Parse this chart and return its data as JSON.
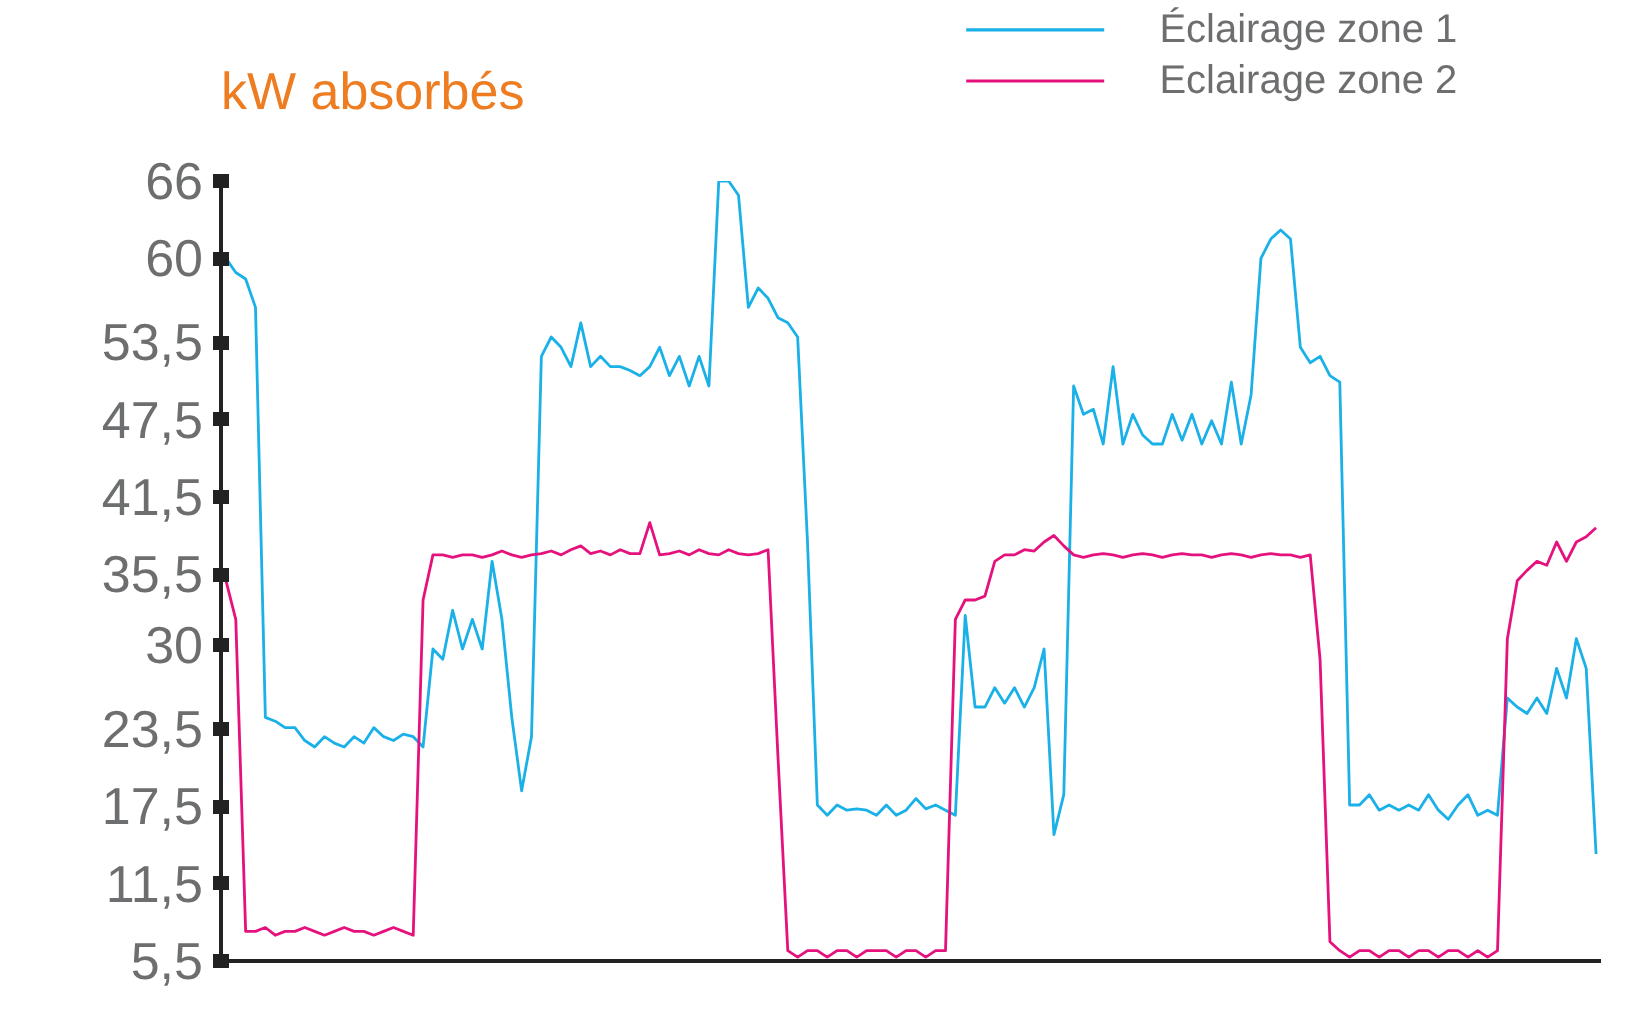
{
  "chart_data": {
    "type": "line",
    "title": "kW absorbés",
    "categories": [
      null,
      null,
      null,
      null,
      null,
      null,
      null,
      null,
      null,
      null,
      null,
      null,
      null,
      null,
      null,
      null,
      null,
      null,
      null,
      null,
      null,
      null,
      null,
      null,
      null,
      null,
      null,
      null,
      null,
      null,
      null,
      null,
      null,
      null,
      null,
      null,
      null,
      null,
      null,
      null,
      null,
      null,
      null,
      null,
      null,
      null,
      null,
      null,
      null,
      null,
      null,
      null,
      null,
      null,
      null,
      null,
      null,
      null,
      null,
      null,
      null,
      null,
      null,
      null,
      null,
      null,
      null,
      null,
      null,
      null,
      null,
      null,
      null,
      null,
      null,
      null,
      null,
      null,
      null,
      null,
      null,
      null,
      null,
      null,
      null,
      null,
      null,
      null,
      null,
      null,
      null,
      null,
      null,
      null,
      null,
      null,
      null,
      null,
      null,
      null,
      null,
      null,
      null,
      null,
      null,
      null,
      null,
      null,
      null,
      null,
      null,
      null,
      null,
      null,
      null,
      null,
      null,
      null,
      null,
      null,
      null,
      null,
      null,
      null,
      null,
      null,
      null,
      null,
      null,
      null,
      null,
      null,
      null,
      null,
      null,
      null,
      null,
      null,
      null,
      null
    ],
    "series": [
      {
        "name": "Éclairage zone 1",
        "color": "#1ab0e8",
        "values": [
          60.0,
          58.9,
          58.4,
          56.2,
          24.4,
          24.1,
          23.6,
          23.6,
          22.6,
          22.1,
          22.9,
          22.4,
          22.1,
          22.9,
          22.4,
          23.6,
          22.9,
          22.6,
          23.1,
          22.9,
          22.1,
          29.7,
          28.9,
          32.7,
          29.7,
          32.0,
          29.7,
          36.5,
          32.0,
          24.4,
          18.7,
          22.9,
          52.4,
          53.9,
          53.1,
          51.6,
          55.0,
          51.6,
          52.4,
          51.6,
          51.6,
          51.3,
          50.9,
          51.6,
          53.1,
          50.9,
          52.4,
          50.1,
          52.4,
          50.1,
          66.0,
          66.0,
          64.9,
          56.2,
          57.7,
          56.9,
          55.4,
          55.0,
          53.9,
          38.0,
          17.6,
          16.8,
          17.6,
          17.2,
          17.3,
          17.2,
          16.8,
          17.6,
          16.8,
          17.2,
          18.1,
          17.3,
          17.6,
          17.2,
          16.8,
          32.3,
          25.2,
          25.2,
          26.7,
          25.5,
          26.7,
          25.2,
          26.7,
          29.7,
          15.3,
          18.4,
          50.1,
          47.9,
          48.3,
          45.6,
          51.6,
          45.6,
          47.9,
          46.3,
          45.6,
          45.6,
          47.9,
          45.9,
          47.9,
          45.6,
          47.4,
          45.6,
          50.4,
          45.6,
          49.4,
          60.0,
          61.5,
          62.2,
          61.5,
          53.1,
          51.9,
          52.4,
          50.9,
          50.4,
          17.6,
          17.6,
          18.4,
          17.2,
          17.6,
          17.2,
          17.6,
          17.2,
          18.4,
          17.2,
          16.5,
          17.6,
          18.4,
          16.8,
          17.2,
          16.8,
          25.9,
          25.2,
          24.7,
          25.9,
          24.7,
          28.2,
          25.9,
          30.5,
          28.2,
          13.8
        ]
      },
      {
        "name": "Eclairage zone 2",
        "color": "#e5127d",
        "values": [
          35.0,
          32.0,
          7.8,
          7.8,
          8.1,
          7.5,
          7.8,
          7.8,
          8.1,
          7.8,
          7.5,
          7.8,
          8.1,
          7.8,
          7.8,
          7.5,
          7.8,
          8.1,
          7.8,
          7.5,
          33.5,
          37.0,
          37.0,
          36.8,
          37.0,
          37.0,
          36.8,
          37.0,
          37.3,
          37.0,
          36.8,
          37.0,
          37.1,
          37.3,
          37.0,
          37.4,
          37.7,
          37.1,
          37.3,
          37.0,
          37.4,
          37.1,
          37.1,
          39.5,
          37.0,
          37.1,
          37.3,
          37.0,
          37.4,
          37.1,
          37.0,
          37.4,
          37.1,
          37.0,
          37.1,
          37.4,
          21.4,
          6.3,
          5.8,
          6.3,
          6.3,
          5.8,
          6.3,
          6.3,
          5.8,
          6.3,
          6.3,
          6.3,
          5.8,
          6.3,
          6.3,
          5.8,
          6.3,
          6.3,
          32.0,
          33.5,
          33.5,
          33.8,
          36.5,
          37.0,
          37.0,
          37.4,
          37.3,
          38.0,
          38.5,
          37.7,
          37.0,
          36.8,
          37.0,
          37.1,
          37.0,
          36.8,
          37.0,
          37.1,
          37.0,
          36.8,
          37.0,
          37.1,
          37.0,
          37.0,
          36.8,
          37.0,
          37.1,
          37.0,
          36.8,
          37.0,
          37.1,
          37.0,
          37.0,
          36.8,
          37.0,
          28.9,
          7.0,
          6.3,
          5.8,
          6.3,
          6.3,
          5.8,
          6.3,
          6.3,
          5.8,
          6.3,
          6.3,
          5.8,
          6.3,
          6.3,
          5.8,
          6.3,
          5.8,
          6.3,
          30.5,
          35.0,
          35.8,
          36.5,
          36.2,
          38.0,
          36.5,
          38.0,
          38.4,
          39.1
        ]
      }
    ],
    "ylim": [
      5.5,
      66
    ],
    "yticks": [
      {
        "value": 5.5,
        "label": "5,5"
      },
      {
        "value": 11.5,
        "label": "11,5"
      },
      {
        "value": 17.5,
        "label": "17,5"
      },
      {
        "value": 23.5,
        "label": "23,5"
      },
      30,
      {
        "value": 35.5,
        "label": "35,5"
      },
      {
        "value": 41.5,
        "label": "41,5"
      },
      {
        "value": 47.5,
        "label": "47,5"
      },
      {
        "value": 53.5,
        "label": "53,5"
      },
      60,
      66
    ],
    "tick_labels": "y",
    "grid": false,
    "legend": "top right",
    "marker": "none",
    "line_style": "solid"
  }
}
